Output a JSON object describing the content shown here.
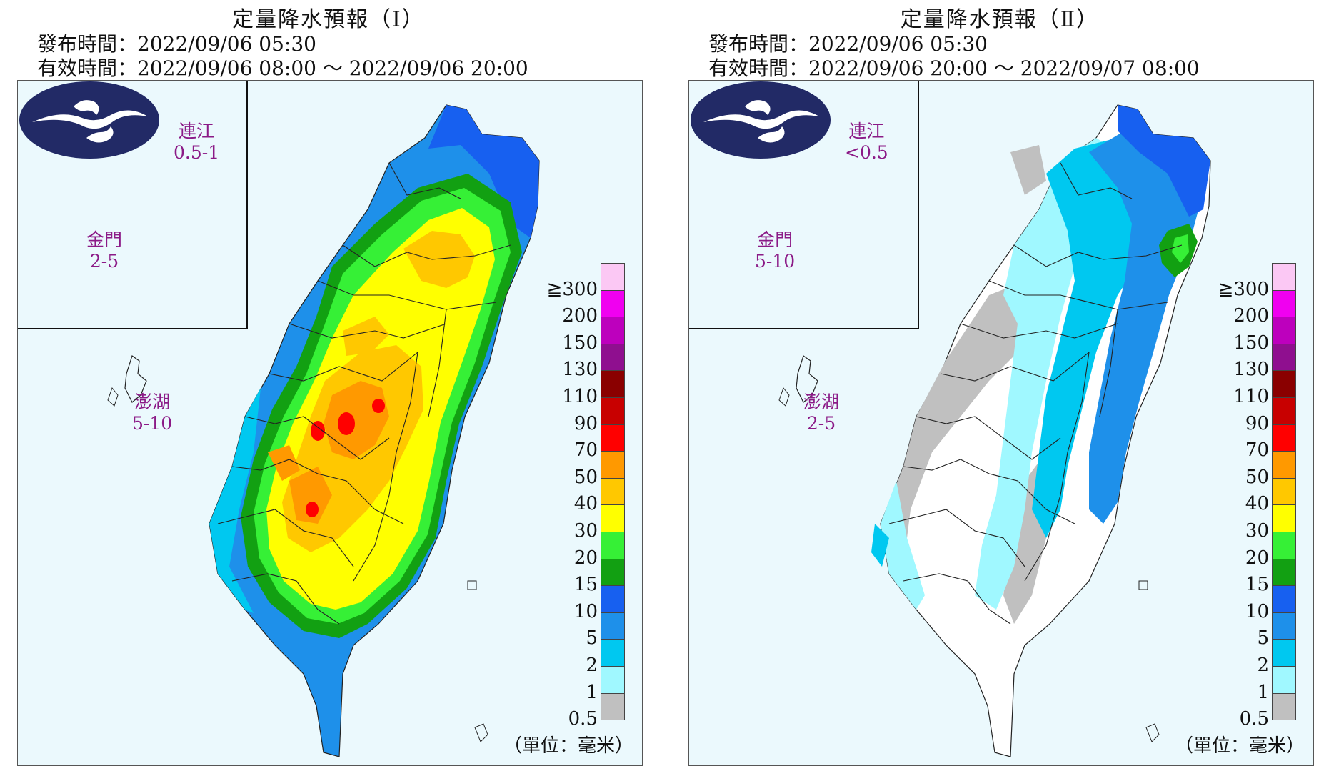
{
  "legend": {
    "labels": [
      "≧300",
      "200",
      "150",
      "130",
      "110",
      "90",
      "70",
      "50",
      "40",
      "30",
      "20",
      "15",
      "10",
      "5",
      "2",
      "1",
      "0.5"
    ],
    "colors": [
      "#fbc8f4",
      "#f000f0",
      "#bd00bd",
      "#8f0f8f",
      "#8a0000",
      "#c80000",
      "#ff0000",
      "#ff9900",
      "#ffc800",
      "#ffff00",
      "#36f036",
      "#12a012",
      "#1760f0",
      "#1e90ea",
      "#00c8f0",
      "#a0f8ff",
      "#c0c0c0"
    ],
    "unit": "（單位：毫米）"
  },
  "panels": [
    {
      "title": "定量降水預報（Ⅰ）",
      "issue_time": "發布時間：2022/09/06 05:30",
      "valid_time": "有效時間：2022/09/06 08:00 ～ 2022/09/06 20:00",
      "islands": {
        "lienchiang": {
          "name": "連江",
          "value": "0.5-1"
        },
        "kinmen": {
          "name": "金門",
          "value": "2-5"
        },
        "penghu": {
          "name": "澎湖",
          "value": "5-10"
        }
      }
    },
    {
      "title": "定量降水預報（Ⅱ）",
      "issue_time": "發布時間：2022/09/06 05:30",
      "valid_time": "有效時間：2022/09/06 20:00 ～ 2022/09/07 08:00",
      "islands": {
        "lienchiang": {
          "name": "連江",
          "value": "<0.5"
        },
        "kinmen": {
          "name": "金門",
          "value": "5-10"
        },
        "penghu": {
          "name": "澎湖",
          "value": "2-5"
        }
      }
    }
  ],
  "colors": {
    "map_background": "#ebf9fd",
    "label_purple": "#8b1a87",
    "logo_navy": "#222a66"
  }
}
